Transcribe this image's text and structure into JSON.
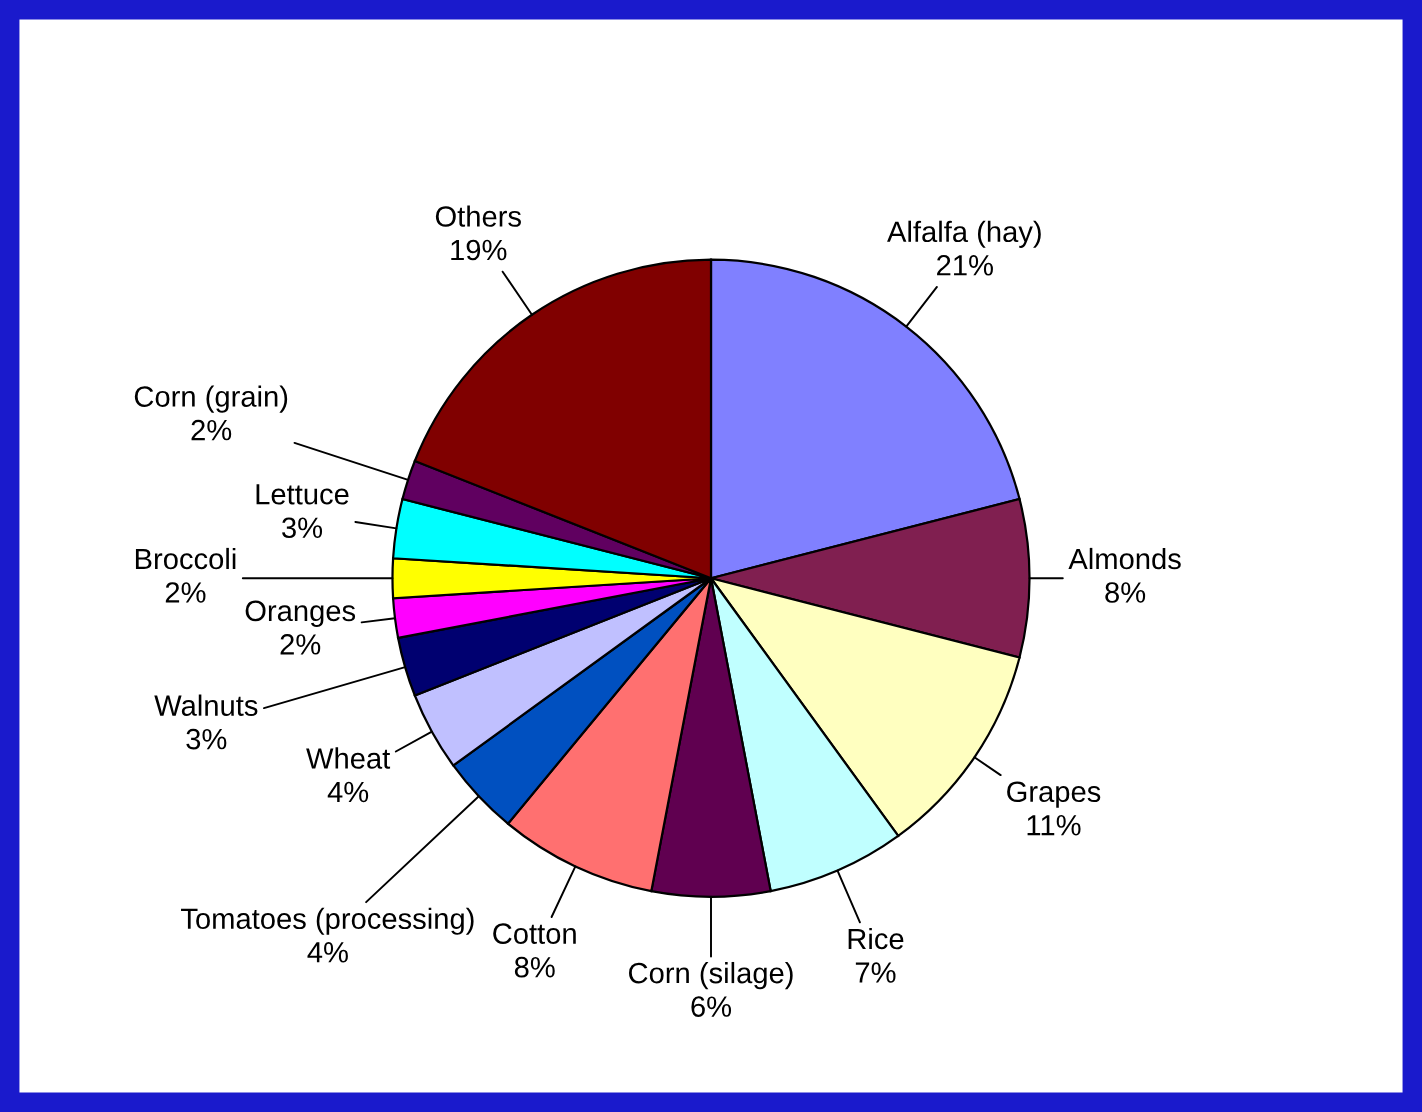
{
  "chart_data": {
    "type": "pie",
    "categories": [
      "Alfalfa (hay)",
      "Almonds",
      "Grapes",
      "Rice",
      "Corn (silage)",
      "Cotton",
      "Tomatoes (processing)",
      "Wheat",
      "Walnuts",
      "Oranges",
      "Broccoli",
      "Lettuce",
      "Corn (grain)",
      "Others"
    ],
    "values": [
      21,
      8,
      11,
      7,
      6,
      8,
      4,
      4,
      3,
      2,
      2,
      3,
      2,
      19
    ],
    "colors": [
      "#8080ff",
      "#801f50",
      "#ffffc0",
      "#c0ffff",
      "#600050",
      "#ff7070",
      "#0050c0",
      "#c0c0ff",
      "#000070",
      "#ff00ff",
      "#ffff00",
      "#00ffff",
      "#600060",
      "#800000"
    ],
    "value_labels": [
      "21%",
      "8%",
      "11%",
      "7%",
      "6%",
      "8%",
      "4%",
      "4%",
      "3%",
      "2%",
      "2%",
      "3%",
      "2%",
      "19%"
    ],
    "legend": false
  }
}
